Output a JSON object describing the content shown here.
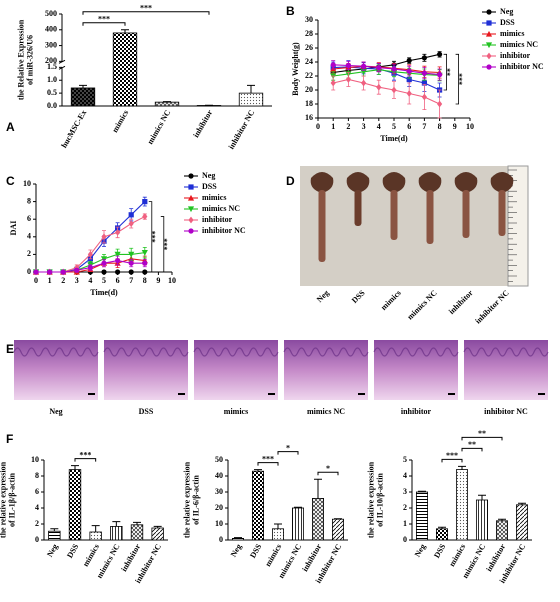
{
  "chart_data": [
    {
      "type": "bar",
      "panel": "A",
      "ylabel": [
        "the Relative Expression",
        "of miR-326/U6"
      ],
      "categories": [
        "hucMSC-Ex",
        "mimics",
        "mimics NC",
        "inhibitor",
        "inhibitor NC"
      ],
      "values": [
        0.7,
        380,
        0.15,
        0.02,
        0.5
      ],
      "errors": [
        0.1,
        20,
        0.02,
        0.01,
        0.3
      ],
      "patterns": [
        "checker-dark",
        "checker",
        "checker-light",
        "dots",
        "dots"
      ],
      "color": "#000000",
      "ylim": [
        0,
        500
      ],
      "axis_break": [
        1.5,
        200
      ],
      "yticks": [
        {
          "value": 0,
          "label": "0.0"
        },
        0.5,
        {
          "value": 1,
          "label": "1.0"
        },
        1.5,
        200,
        300,
        400,
        500
      ],
      "annotations": [
        {
          "text": "***",
          "from": 0,
          "to": 1
        },
        {
          "text": "***",
          "from": 0,
          "to": 3
        }
      ]
    },
    {
      "type": "line",
      "panel": "B",
      "ylabel": "Body Weight(g)",
      "xlabel": "Time(d)",
      "legend": "right",
      "x": [
        1,
        2,
        3,
        4,
        5,
        6,
        7,
        8
      ],
      "xlim": [
        0,
        10
      ],
      "xticks": [
        0,
        1,
        2,
        3,
        4,
        5,
        6,
        7,
        8,
        9,
        10
      ],
      "ylim": [
        16,
        30
      ],
      "yticks": [
        16,
        18,
        20,
        22,
        24,
        26,
        28,
        30
      ],
      "series": [
        {
          "name": "Neg",
          "color": "#000000",
          "marker": "circle",
          "values": [
            22.5,
            22.8,
            23,
            23.3,
            23.6,
            24.2,
            24.6,
            25.1
          ],
          "errors": [
            0.5,
            0.5,
            0.4,
            0.5,
            0.5,
            0.4,
            0.5,
            0.4
          ]
        },
        {
          "name": "DSS",
          "color": "#1f2fd6",
          "marker": "square",
          "values": [
            23.2,
            23.3,
            23.1,
            23,
            22.4,
            21.5,
            21,
            20
          ],
          "errors": [
            0.8,
            0.9,
            0.8,
            0.8,
            1,
            1,
            1.2,
            1
          ]
        },
        {
          "name": "mimics",
          "color": "#e8191f",
          "marker": "triangle",
          "values": [
            23,
            23.2,
            23.4,
            23.3,
            23.1,
            22.9,
            22.6,
            22.5
          ],
          "errors": [
            0.6,
            0.6,
            0.6,
            0.6,
            0.7,
            0.7,
            0.8,
            0.8
          ]
        },
        {
          "name": "mimics NC",
          "color": "#22c322",
          "marker": "triangle-down",
          "values": [
            22,
            22.3,
            22.6,
            22.9,
            22.6,
            22.4,
            22.2,
            22.1
          ],
          "errors": [
            0.6,
            0.6,
            0.6,
            0.7,
            0.7,
            0.7,
            0.8,
            0.8
          ]
        },
        {
          "name": "inhibitor",
          "color": "#f06080",
          "marker": "diamond",
          "values": [
            21,
            21.5,
            21,
            20.4,
            20,
            19.5,
            19,
            18
          ],
          "errors": [
            1,
            1,
            1,
            1,
            1.2,
            1.5,
            1.8,
            2
          ]
        },
        {
          "name": "inhibitor NC",
          "color": "#b000c8",
          "marker": "circle",
          "values": [
            23.6,
            23.5,
            23.4,
            23.2,
            23,
            22.7,
            22.4,
            22.2
          ],
          "errors": [
            0.6,
            0.6,
            0.6,
            0.6,
            0.7,
            0.7,
            0.8,
            0.8
          ]
        }
      ],
      "annotations": [
        {
          "text": "**",
          "series": [
            0,
            1
          ]
        },
        {
          "text": "***",
          "series": [
            0,
            4
          ]
        }
      ]
    },
    {
      "type": "line",
      "panel": "C",
      "ylabel": "DAI",
      "xlabel": "Time(d)",
      "legend": "right",
      "x": [
        0,
        1,
        2,
        3,
        4,
        5,
        6,
        7,
        8
      ],
      "xlim": [
        0,
        10
      ],
      "xticks": [
        0,
        1,
        2,
        3,
        4,
        5,
        6,
        7,
        8,
        9,
        10
      ],
      "ylim": [
        0,
        10
      ],
      "yticks": [
        0,
        2,
        4,
        6,
        8,
        10
      ],
      "series": [
        {
          "name": "Neg",
          "color": "#000000",
          "marker": "circle",
          "values": [
            0,
            0,
            0,
            0,
            0,
            0,
            0,
            0,
            0
          ],
          "errors": [
            0,
            0,
            0,
            0,
            0,
            0,
            0,
            0,
            0
          ]
        },
        {
          "name": "DSS",
          "color": "#1f2fd6",
          "marker": "square",
          "values": [
            0,
            0,
            0,
            0.3,
            1.5,
            3.5,
            5,
            6.5,
            8
          ],
          "errors": [
            0,
            0,
            0,
            0.2,
            0.4,
            0.6,
            0.6,
            0.7,
            0.5
          ]
        },
        {
          "name": "mimics",
          "color": "#e8191f",
          "marker": "triangle",
          "values": [
            0,
            0,
            0,
            0,
            0.3,
            1,
            1,
            1.5,
            1.3
          ],
          "errors": [
            0,
            0,
            0,
            0,
            0.2,
            0.4,
            0.5,
            0.6,
            0.5
          ]
        },
        {
          "name": "mimics NC",
          "color": "#22c322",
          "marker": "triangle-down",
          "values": [
            0,
            0,
            0,
            0.2,
            0.8,
            1.5,
            2,
            2,
            2.2
          ],
          "errors": [
            0,
            0,
            0,
            0.2,
            0.4,
            0.5,
            0.6,
            0.7,
            0.6
          ]
        },
        {
          "name": "inhibitor",
          "color": "#f06080",
          "marker": "diamond",
          "values": [
            0,
            0,
            0,
            0.5,
            2,
            4,
            4.5,
            5.5,
            6.3
          ],
          "errors": [
            0,
            0,
            0,
            0.3,
            0.5,
            0.7,
            0.6,
            0.5,
            0.3
          ]
        },
        {
          "name": "inhibitor NC",
          "color": "#b000c8",
          "marker": "circle",
          "values": [
            0,
            0,
            0,
            0.2,
            0.5,
            1,
            1.3,
            1,
            1
          ],
          "errors": [
            0,
            0,
            0,
            0.2,
            0.3,
            0.4,
            0.5,
            0.4,
            0.4
          ]
        }
      ],
      "annotations": [
        {
          "text": "***",
          "series": [
            0,
            1
          ]
        },
        {
          "text": "***",
          "series": [
            0,
            4
          ]
        }
      ]
    },
    {
      "type": "bar",
      "panel": "F",
      "ylabel": [
        "the relative expression",
        "of IL-1β/β-actin"
      ],
      "categories": [
        "Neg",
        "DSS",
        "mimics",
        "mimics NC",
        "inhibitor",
        "inhibitor NC"
      ],
      "values": [
        1.1,
        8.8,
        1,
        1.7,
        1.9,
        1.5
      ],
      "errors": [
        0.3,
        0.5,
        0.8,
        0.6,
        0.3,
        0.2
      ],
      "patterns": [
        "hlines",
        "checker",
        "dots",
        "vlines",
        "cross",
        "diag"
      ],
      "color": "#000000",
      "ylim": [
        0,
        10
      ],
      "yticks": [
        0,
        2,
        4,
        6,
        8,
        10
      ],
      "annotations": [
        {
          "text": "***",
          "from": 1,
          "to": 2
        }
      ]
    },
    {
      "type": "bar",
      "ylabel": [
        "the relative expression",
        "of IL-6/β-actin"
      ],
      "categories": [
        "Neg",
        "DSS",
        "mimics",
        "mimics NC",
        "inhibitor",
        "inhibitor NC"
      ],
      "values": [
        1,
        43,
        7,
        20,
        26,
        13
      ],
      "errors": [
        0.5,
        1,
        3,
        0.5,
        12,
        0.3
      ],
      "patterns": [
        "hlines",
        "checker",
        "dots",
        "vlines",
        "cross",
        "diag"
      ],
      "color": "#000000",
      "ylim": [
        0,
        50
      ],
      "yticks": [
        0,
        10,
        20,
        30,
        40,
        50
      ],
      "annotations": [
        {
          "text": "***",
          "from": 1,
          "to": 2
        },
        {
          "text": "*",
          "from": 2,
          "to": 3
        },
        {
          "text": "*",
          "from": 4,
          "to": 5
        }
      ]
    },
    {
      "type": "bar",
      "ylabel": [
        "the relative expression",
        "of IL-10/β-actin"
      ],
      "categories": [
        "Neg",
        "DSS",
        "mimics",
        "mimics NC",
        "inhibitor",
        "inhibitor NC"
      ],
      "values": [
        3,
        0.7,
        4.4,
        2.5,
        1.2,
        2.2
      ],
      "errors": [
        0.05,
        0.1,
        0.2,
        0.3,
        0.1,
        0.1
      ],
      "patterns": [
        "hlines",
        "checker",
        "dots",
        "vlines",
        "cross",
        "diag"
      ],
      "color": "#000000",
      "ylim": [
        0,
        5
      ],
      "yticks": [
        0,
        1,
        2,
        3,
        4,
        5
      ],
      "annotations": [
        {
          "text": "***",
          "from": 1,
          "to": 2
        },
        {
          "text": "**",
          "from": 2,
          "to": 3
        },
        {
          "text": "**",
          "from": 2,
          "to": 4
        }
      ]
    }
  ],
  "photos": {
    "panel": "D",
    "labels": [
      "Neg",
      "DSS",
      "mimics",
      "mimics NC",
      "inhibitor",
      "inhibitor NC"
    ]
  },
  "histology": {
    "panel": "E",
    "labels": [
      "Neg",
      "DSS",
      "mimics",
      "mimics NC",
      "inhibitor",
      "inhibitor NC"
    ]
  }
}
